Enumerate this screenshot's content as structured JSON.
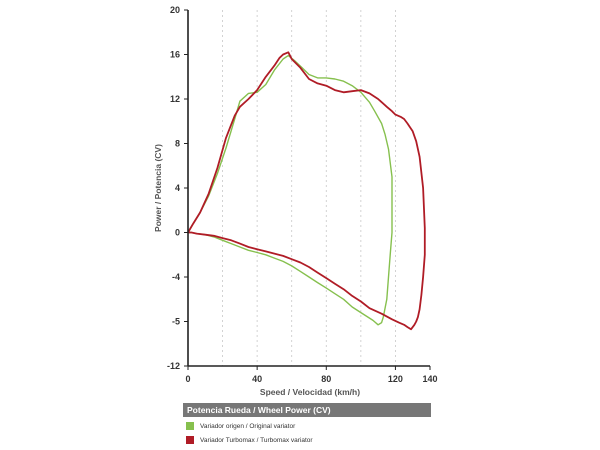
{
  "chart_data": {
    "type": "line",
    "title": "",
    "xlabel": "Speed / Velocidad (km/h)",
    "ylabel": "Power / Potencia (CV)",
    "xlim": [
      0,
      140
    ],
    "ylim": [
      -12,
      20
    ],
    "xticks": [
      "0",
      "40",
      "80",
      "120",
      "140"
    ],
    "yticks": [
      "-12",
      "-5",
      "-4",
      "0",
      "4",
      "8",
      "12",
      "16",
      "20"
    ],
    "grid": "vertical dashed",
    "series": [
      {
        "name": "Variador origen / Original variator",
        "color": "#86c04e",
        "x": [
          0,
          3,
          7,
          12,
          17,
          22,
          27,
          30,
          35,
          40,
          45,
          50,
          55,
          58,
          62,
          66,
          70,
          75,
          80,
          85,
          90,
          95,
          100,
          105,
          108,
          112,
          114,
          116,
          118,
          118,
          117,
          116,
          115,
          113,
          112,
          110,
          107,
          103,
          100,
          95,
          90,
          85,
          80,
          75,
          70,
          65,
          60,
          55,
          50,
          45,
          40,
          35,
          30,
          25,
          20,
          15,
          10,
          5,
          2,
          0
        ],
        "y": [
          0,
          0.8,
          1.8,
          3.3,
          5.3,
          7.6,
          10.2,
          11.8,
          12.5,
          12.6,
          13.3,
          14.6,
          15.6,
          15.9,
          15.4,
          14.8,
          14.2,
          13.9,
          13.9,
          13.8,
          13.6,
          13.2,
          12.6,
          11.7,
          10.9,
          9.8,
          8.8,
          7.5,
          5.0,
          0,
          -2,
          -4,
          -6,
          -7.6,
          -8.1,
          -8.3,
          -7.9,
          -7.5,
          -7.2,
          -6.7,
          -6.0,
          -5.5,
          -5.0,
          -4.5,
          -4.0,
          -3.5,
          -3.0,
          -2.6,
          -2.3,
          -2.0,
          -1.8,
          -1.6,
          -1.3,
          -1.0,
          -0.7,
          -0.4,
          -0.2,
          -0.1,
          0,
          0
        ]
      },
      {
        "name": "Variador Turbomax  / Turbomax variator",
        "color": "#b01c26",
        "x": [
          0,
          3,
          7,
          12,
          17,
          22,
          27,
          30,
          35,
          40,
          45,
          50,
          53,
          55,
          58,
          60,
          65,
          70,
          75,
          80,
          85,
          90,
          95,
          100,
          105,
          110,
          115,
          118,
          120,
          123,
          125,
          127,
          130,
          132,
          134,
          136,
          137,
          137,
          136,
          135,
          134,
          133,
          132,
          131,
          129,
          127,
          125,
          122,
          118,
          112,
          105,
          100,
          95,
          90,
          85,
          80,
          75,
          70,
          65,
          60,
          55,
          50,
          45,
          40,
          35,
          30,
          25,
          20,
          15,
          10,
          5,
          2,
          0
        ],
        "y": [
          0,
          0.8,
          1.8,
          3.5,
          5.8,
          8.5,
          10.5,
          11.3,
          12.0,
          12.8,
          14.0,
          15.0,
          15.7,
          16.0,
          16.2,
          15.6,
          14.8,
          13.8,
          13.4,
          13.2,
          12.8,
          12.6,
          12.7,
          12.8,
          12.5,
          12.0,
          11.3,
          10.9,
          10.6,
          10.4,
          10.2,
          9.8,
          9.1,
          8.2,
          6.8,
          4.0,
          0.4,
          -2.0,
          -4.0,
          -5.6,
          -6.9,
          -7.6,
          -8.0,
          -8.3,
          -8.7,
          -8.5,
          -8.3,
          -8.1,
          -7.8,
          -7.3,
          -6.8,
          -6.2,
          -5.7,
          -5.1,
          -4.6,
          -4.1,
          -3.6,
          -3.1,
          -2.7,
          -2.4,
          -2.1,
          -1.9,
          -1.7,
          -1.5,
          -1.3,
          -1.0,
          -0.7,
          -0.5,
          -0.3,
          -0.2,
          -0.1,
          0,
          0
        ]
      }
    ]
  },
  "legend": {
    "header": "Potencia Rueda / Wheel Power (CV)",
    "items": [
      {
        "label": "Variador origen / Original variator",
        "color": "#86c04e"
      },
      {
        "label": "Variador Turbomax  / Turbomax variator",
        "color": "#b01c26"
      }
    ]
  }
}
